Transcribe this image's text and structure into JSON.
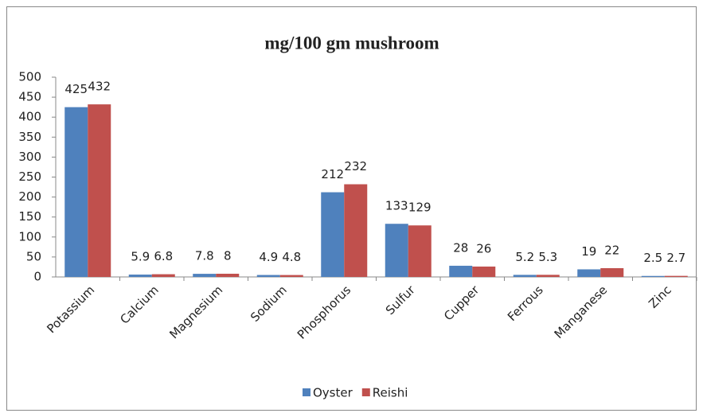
{
  "chart_data": {
    "type": "bar",
    "title": "mg/100 gm mushroom",
    "categories": [
      "Potassium",
      "Calcium",
      "Magnesium",
      "Sodium",
      "Phosphorus",
      "Sulfur",
      "Cupper",
      "Ferrous",
      "Manganese",
      "Zinc"
    ],
    "series": [
      {
        "name": "Oyster",
        "color": "#4f81bd",
        "values": [
          425,
          5.9,
          7.8,
          4.9,
          212,
          133,
          28,
          5.2,
          19,
          2.5
        ]
      },
      {
        "name": "Reishi",
        "color": "#c0504d",
        "values": [
          432,
          6.8,
          8,
          4.8,
          232,
          129,
          26,
          5.3,
          22,
          2.7
        ]
      }
    ],
    "ylim": [
      0,
      500
    ],
    "yticks": [
      0,
      50,
      100,
      150,
      200,
      250,
      300,
      350,
      400,
      450,
      500
    ],
    "grid": false,
    "legend": "bottom"
  }
}
